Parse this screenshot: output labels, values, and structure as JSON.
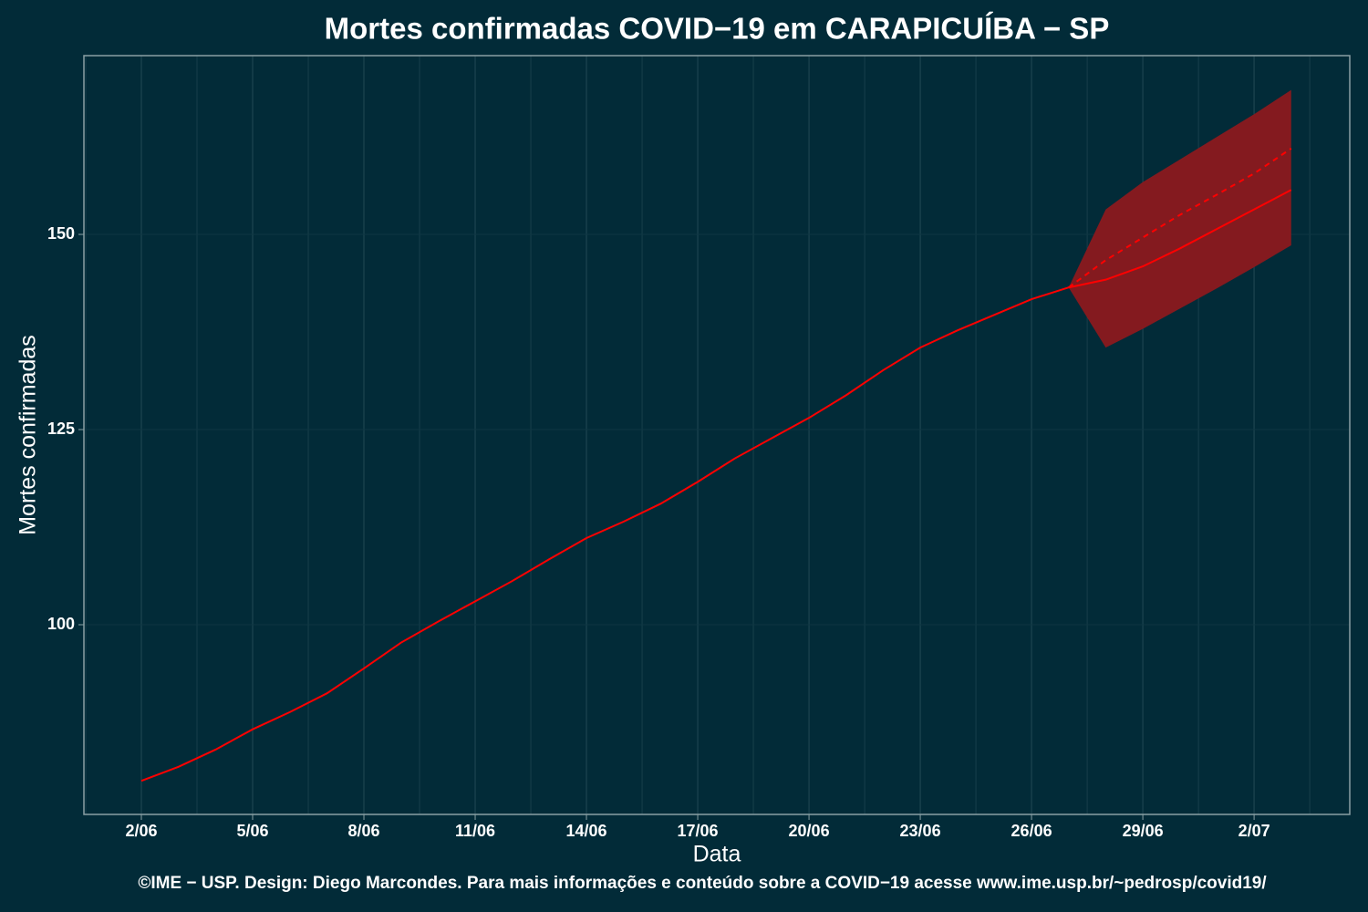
{
  "chart_data": {
    "type": "line",
    "title": "Mortes confirmadas COVID−19 em CARAPICUÍBA − SP",
    "x_label": "Data",
    "y_label": "Mortes confirmadas",
    "caption": "©IME − USP. Design: Diego Marcondes. Para mais informações e conteúdo sobre a COVID−19 acesse www.ime.usp.br/~pedrosp/covid19/",
    "categories": [
      "2/06",
      null,
      null,
      "5/06",
      null,
      null,
      "8/06",
      null,
      null,
      "11/06",
      null,
      null,
      "14/06",
      null,
      null,
      "17/06",
      null,
      null,
      "20/06",
      null,
      null,
      "23/06",
      null,
      null,
      "26/06",
      null,
      null,
      "29/06",
      null,
      null,
      "2/07",
      null
    ],
    "series": [
      {
        "color": "#ff0000",
        "dash": false,
        "values": [
          80.0,
          81.8,
          84.0,
          86.6,
          88.8,
          91.2,
          94.4,
          97.7,
          100.4,
          103.0,
          105.6,
          108.4,
          111.1,
          113.2,
          115.5,
          118.3,
          121.3,
          123.9,
          126.5,
          129.4,
          132.6,
          135.5,
          137.7,
          139.7,
          141.7,
          143.2,
          null,
          null,
          null,
          null,
          null,
          null
        ]
      },
      {
        "color": "#ff0000",
        "dash": false,
        "values": [
          null,
          null,
          null,
          null,
          null,
          null,
          null,
          null,
          null,
          null,
          null,
          null,
          null,
          null,
          null,
          null,
          null,
          null,
          null,
          null,
          null,
          null,
          null,
          null,
          null,
          143.2,
          144.2,
          145.9,
          148.2,
          150.7,
          153.2,
          155.7
        ]
      },
      {
        "color": "#ff0000",
        "dash": true,
        "values": [
          null,
          null,
          null,
          null,
          null,
          null,
          null,
          null,
          null,
          null,
          null,
          null,
          null,
          null,
          null,
          null,
          null,
          null,
          null,
          null,
          null,
          null,
          null,
          null,
          null,
          143.2,
          146.7,
          149.6,
          152.5,
          155.1,
          157.8,
          161.0
        ]
      }
    ],
    "band": {
      "color": "#841a1f",
      "lower": [
        null,
        null,
        null,
        null,
        null,
        null,
        null,
        null,
        null,
        null,
        null,
        null,
        null,
        null,
        null,
        null,
        null,
        null,
        null,
        null,
        null,
        null,
        null,
        null,
        null,
        143.2,
        135.5,
        137.9,
        140.5,
        143.1,
        145.8,
        148.6
      ],
      "upper": [
        null,
        null,
        null,
        null,
        null,
        null,
        null,
        null,
        null,
        null,
        null,
        null,
        null,
        null,
        null,
        null,
        null,
        null,
        null,
        null,
        null,
        null,
        null,
        null,
        null,
        143.2,
        153.2,
        156.7,
        159.6,
        162.5,
        165.4,
        168.5
      ]
    },
    "ylim": [
      75.7,
      172.9
    ],
    "yticks": [
      100,
      125,
      150
    ],
    "grid": true
  }
}
